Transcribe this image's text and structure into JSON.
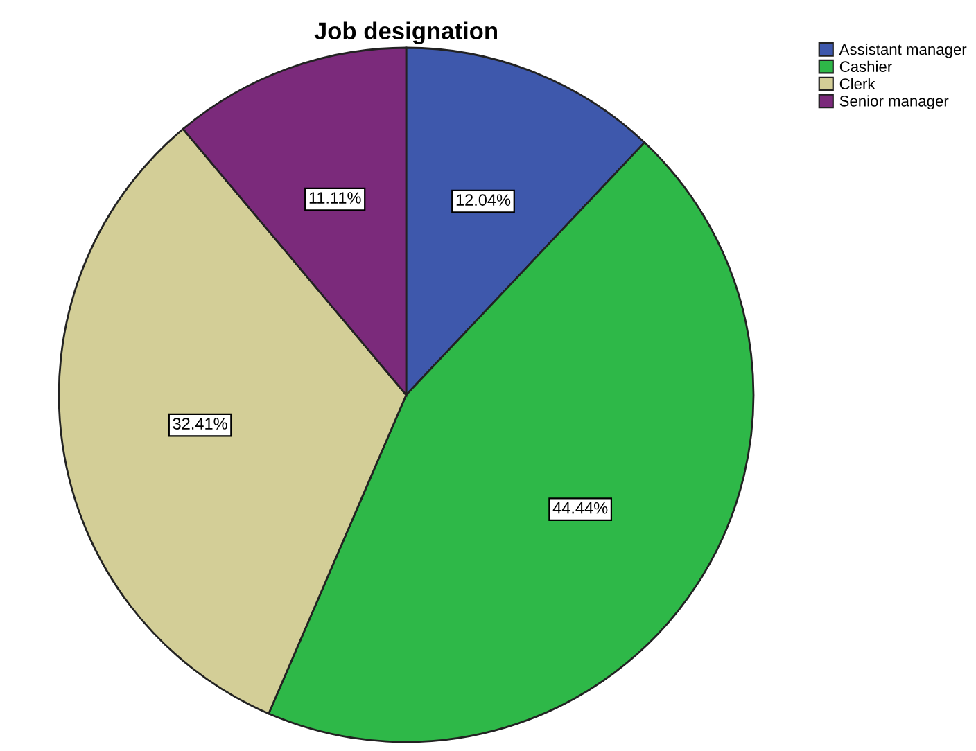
{
  "chart_data": {
    "type": "pie",
    "title": "Job designation",
    "categories": [
      "Assistant manager",
      "Cashier",
      "Clerk",
      "Senior manager"
    ],
    "values": [
      12.04,
      44.44,
      32.41,
      11.11
    ],
    "colors": [
      "#3e58ac",
      "#2eb848",
      "#d3ce97",
      "#7b2a7b"
    ],
    "value_labels": [
      "12.04%",
      "44.44%",
      "32.41%",
      "11.11%"
    ],
    "legend": "top right"
  }
}
